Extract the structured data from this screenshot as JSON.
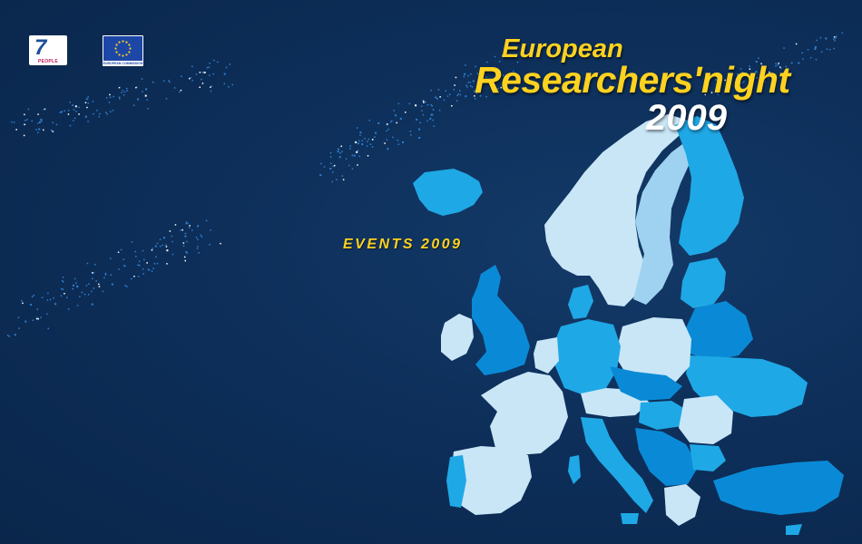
{
  "logos": {
    "fp7_number": "7",
    "fp7_caption": "PEOPLE",
    "eu_caption": "EUROPEAN COMMISSION"
  },
  "title": {
    "line1": "European",
    "line2": "Researchers'night",
    "year": "2009"
  },
  "events_heading": "EVENTS 2009",
  "colors": {
    "background": "#0d2f5a",
    "title_yellow": "#ffd21f",
    "map_light": "#c9e6f7",
    "map_mid": "#1fa8e6",
    "map_dark": "#0a8ad6"
  }
}
